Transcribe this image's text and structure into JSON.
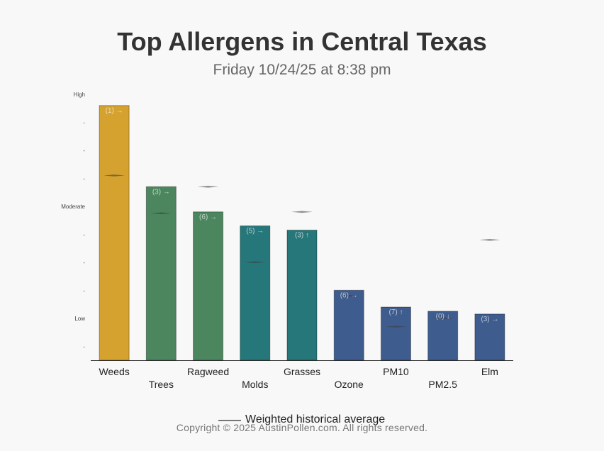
{
  "chart_data": {
    "type": "bar",
    "title": "Top Allergens in Central Texas",
    "subtitle": "Friday 10/24/25 at 8:38 pm",
    "y_levels": [
      {
        "label": "High",
        "value": 9.5
      },
      {
        "label": "-",
        "value": 8.5
      },
      {
        "label": "-",
        "value": 7.5
      },
      {
        "label": "-",
        "value": 6.5
      },
      {
        "label": "Moderate",
        "value": 5.5
      },
      {
        "label": "-",
        "value": 4.5
      },
      {
        "label": "-",
        "value": 3.5
      },
      {
        "label": "-",
        "value": 2.5
      },
      {
        "label": "Low",
        "value": 1.5
      },
      {
        "label": "-",
        "value": 0.5
      }
    ],
    "ylim": [
      0,
      9.5
    ],
    "categories": [
      "Weeds",
      "Trees",
      "Ragweed",
      "Molds",
      "Grasses",
      "Ozone",
      "PM10",
      "PM2.5",
      "Elm"
    ],
    "values": [
      9.1,
      6.2,
      5.3,
      4.8,
      4.65,
      2.5,
      1.9,
      1.75,
      1.65
    ],
    "data_labels": [
      "(1) →",
      "(3) →",
      "(6) →",
      "(5) →",
      "(3) ↑",
      "(6) →",
      "(7) ↑",
      "(0) ↓",
      "(3) →"
    ],
    "historical_average": [
      6.6,
      5.25,
      6.2,
      3.5,
      5.3,
      2.3,
      1.2,
      1.5,
      4.3
    ],
    "colors": [
      "#d6a22f",
      "#4b865e",
      "#4b865e",
      "#26777a",
      "#26777a",
      "#3e5d8e",
      "#3e5d8e",
      "#3e5d8e",
      "#3e5d8e"
    ],
    "legend": {
      "label": "Weighted historical average",
      "position": "bottom-center"
    }
  },
  "footer": {
    "copyright": "Copyright © 2025 AustinPollen.com.  All rights reserved."
  }
}
